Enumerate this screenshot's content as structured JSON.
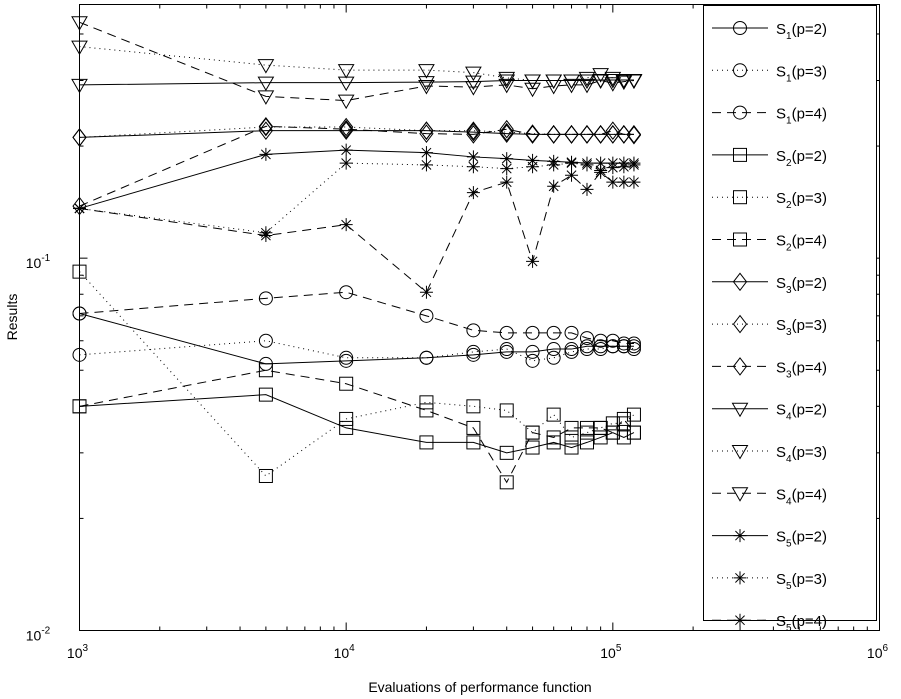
{
  "chart_data": {
    "type": "line",
    "title": "",
    "xlabel": "Evaluations of performance function",
    "ylabel": "Results",
    "xscale": "log",
    "yscale": "log",
    "xlim": [
      1000,
      1000000
    ],
    "ylim": [
      0.01,
      0.48
    ],
    "xticks": [
      {
        "base": "10",
        "exp": "3",
        "value": 1000
      },
      {
        "base": "10",
        "exp": "4",
        "value": 10000
      },
      {
        "base": "10",
        "exp": "5",
        "value": 100000
      },
      {
        "base": "10",
        "exp": "6",
        "value": 1000000
      }
    ],
    "yticks": [
      {
        "base": "10",
        "exp": "-2",
        "value": 0.01
      },
      {
        "base": "10",
        "exp": "-1",
        "value": 0.1
      }
    ],
    "grid": false,
    "legend_position": "right",
    "x": [
      1000,
      5000,
      10000,
      20000,
      30000,
      40000,
      50000,
      60000,
      70000,
      80000,
      90000,
      100000,
      110000,
      120000
    ],
    "series": [
      {
        "name": "S1(p=2)",
        "marker": "circle",
        "line": "solid",
        "values": [
          0.071,
          0.052,
          0.053,
          0.054,
          0.055,
          0.056,
          0.056,
          0.057,
          0.057,
          0.058,
          0.058,
          0.058,
          0.058,
          0.058
        ]
      },
      {
        "name": "S1(p=3)",
        "marker": "circle",
        "line": "dotted",
        "values": [
          0.055,
          0.06,
          0.054,
          0.054,
          0.056,
          0.057,
          0.053,
          0.054,
          0.056,
          0.057,
          0.057,
          0.058,
          0.058,
          0.057
        ]
      },
      {
        "name": "S1(p=4)",
        "marker": "circle",
        "line": "dashed",
        "values": [
          0.071,
          0.078,
          0.081,
          0.07,
          0.064,
          0.063,
          0.063,
          0.063,
          0.063,
          0.061,
          0.06,
          0.06,
          0.059,
          0.059
        ]
      },
      {
        "name": "S2(p=2)",
        "marker": "square",
        "line": "solid",
        "values": [
          0.04,
          0.043,
          0.035,
          0.032,
          0.032,
          0.03,
          0.031,
          0.032,
          0.031,
          0.032,
          0.033,
          0.034,
          0.033,
          0.034
        ]
      },
      {
        "name": "S2(p=3)",
        "marker": "square",
        "line": "dotted",
        "values": [
          0.092,
          0.026,
          0.037,
          0.041,
          0.04,
          0.039,
          0.034,
          0.038,
          0.033,
          0.034,
          0.035,
          0.036,
          0.036,
          0.038
        ]
      },
      {
        "name": "S2(p=4)",
        "marker": "square",
        "line": "dashed",
        "values": [
          0.04,
          0.05,
          0.046,
          0.039,
          0.035,
          0.025,
          0.034,
          0.033,
          0.035,
          0.035,
          0.035,
          0.034,
          0.037,
          0.034
        ]
      },
      {
        "name": "S3(p=2)",
        "marker": "diamond",
        "line": "solid",
        "values": [
          0.211,
          0.22,
          0.22,
          0.22,
          0.218,
          0.216,
          0.215,
          0.215,
          0.215,
          0.215,
          0.215,
          0.215,
          0.215,
          0.215
        ]
      },
      {
        "name": "S3(p=3)",
        "marker": "diamond",
        "line": "dotted",
        "values": [
          0.211,
          0.225,
          0.225,
          0.22,
          0.22,
          0.218,
          0.216,
          0.215,
          0.215,
          0.215,
          0.215,
          0.215,
          0.215,
          0.214
        ]
      },
      {
        "name": "S3(p=4)",
        "marker": "diamond",
        "line": "dashed",
        "values": [
          0.138,
          0.226,
          0.222,
          0.216,
          0.215,
          0.222,
          0.215,
          0.215,
          0.215,
          0.215,
          0.215,
          0.22,
          0.215,
          0.215
        ]
      },
      {
        "name": "S4(p=2)",
        "marker": "triangle-down",
        "line": "solid",
        "values": [
          0.292,
          0.296,
          0.296,
          0.297,
          0.298,
          0.3,
          0.3,
          0.3,
          0.3,
          0.3,
          0.301,
          0.301,
          0.301,
          0.301
        ]
      },
      {
        "name": "S4(p=3)",
        "marker": "triangle-down",
        "line": "dotted",
        "values": [
          0.37,
          0.33,
          0.32,
          0.32,
          0.315,
          0.305,
          0.3,
          0.3,
          0.3,
          0.305,
          0.312,
          0.305,
          0.3,
          0.3
        ]
      },
      {
        "name": "S4(p=4)",
        "marker": "triangle-down",
        "line": "dashed",
        "values": [
          0.43,
          0.272,
          0.265,
          0.29,
          0.288,
          0.292,
          0.285,
          0.29,
          0.292,
          0.292,
          0.3,
          0.295,
          0.298,
          0.3
        ]
      },
      {
        "name": "S5(p=2)",
        "marker": "star",
        "line": "solid",
        "values": [
          0.136,
          0.19,
          0.195,
          0.192,
          0.187,
          0.185,
          0.183,
          0.182,
          0.181,
          0.18,
          0.18,
          0.18,
          0.18,
          0.18
        ]
      },
      {
        "name": "S5(p=3)",
        "marker": "star",
        "line": "dotted",
        "values": [
          0.136,
          0.117,
          0.18,
          0.178,
          0.176,
          0.174,
          0.176,
          0.178,
          0.18,
          0.178,
          0.172,
          0.175,
          0.176,
          0.178
        ]
      },
      {
        "name": "S5(p=4)",
        "marker": "star",
        "line": "dashed",
        "values": [
          0.136,
          0.115,
          0.123,
          0.081,
          0.15,
          0.16,
          0.098,
          0.156,
          0.167,
          0.153,
          0.17,
          0.16,
          0.16,
          0.16
        ]
      }
    ]
  }
}
